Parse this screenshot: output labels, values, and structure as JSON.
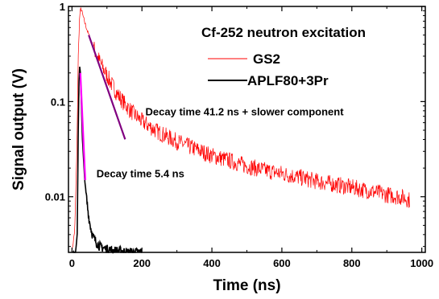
{
  "chart_data": {
    "type": "line",
    "xlabel": "Time (ns)",
    "ylabel": "Signal output (V)",
    "xlim": [
      -10,
      1010
    ],
    "ylim": [
      0.0026,
      1.0
    ],
    "y_scale": "log",
    "x_ticks": [
      0,
      200,
      400,
      600,
      800,
      1000
    ],
    "x_tick_labels": [
      "0",
      "200",
      "400",
      "600",
      "800",
      "1000"
    ],
    "y_ticks": [
      0.01,
      0.1,
      1
    ],
    "y_tick_labels": [
      "0.01",
      "0.1",
      "1"
    ],
    "grid": false,
    "legend": {
      "title": "Cf-252 neutron excitation",
      "position": "top-right"
    },
    "series": [
      {
        "name": "GS2",
        "color": "#ff0000",
        "x": [
          0,
          8,
          14,
          18,
          22,
          25,
          28,
          32,
          38,
          45,
          55,
          70,
          90,
          110,
          130,
          150,
          175,
          200,
          250,
          300,
          350,
          400,
          450,
          500,
          550,
          600,
          650,
          700,
          750,
          800,
          850,
          900,
          950,
          965
        ],
        "y": [
          0.0026,
          0.0045,
          0.03,
          0.3,
          0.8,
          0.95,
          0.9,
          0.78,
          0.65,
          0.54,
          0.43,
          0.31,
          0.22,
          0.16,
          0.12,
          0.095,
          0.075,
          0.062,
          0.047,
          0.038,
          0.032,
          0.027,
          0.024,
          0.021,
          0.019,
          0.0175,
          0.016,
          0.0145,
          0.0135,
          0.0125,
          0.0115,
          0.0105,
          0.0098,
          0.0092
        ]
      },
      {
        "name": "APLF80+3Pr",
        "color": "#000000",
        "x": [
          0,
          10,
          15,
          18,
          20,
          22,
          24,
          26,
          28,
          30,
          33,
          36,
          40,
          45,
          50,
          55,
          60,
          70,
          80,
          90,
          100,
          120,
          140,
          160,
          180,
          200
        ],
        "y": [
          0.0026,
          0.0026,
          0.004,
          0.05,
          0.16,
          0.23,
          0.2,
          0.12,
          0.07,
          0.04,
          0.025,
          0.016,
          0.011,
          0.0075,
          0.0055,
          0.0045,
          0.0038,
          0.0033,
          0.003,
          0.0029,
          0.0028,
          0.0027,
          0.0027,
          0.0026,
          0.0026,
          0.0026
        ]
      }
    ],
    "fits": [
      {
        "color": "#800080",
        "x_range": [
          48,
          152
        ],
        "tau": 41.2,
        "y_start": 0.5
      },
      {
        "color": "#ff00ff",
        "x_range": [
          24,
          38
        ],
        "tau": 5.4,
        "y_start": 0.2
      }
    ],
    "annotations": [
      {
        "text": "Decay time 41.2 ns + slower component",
        "x": 210,
        "y": 0.072
      },
      {
        "text": "Decay time 5.4 ns",
        "x": 70,
        "y": 0.016
      }
    ]
  }
}
